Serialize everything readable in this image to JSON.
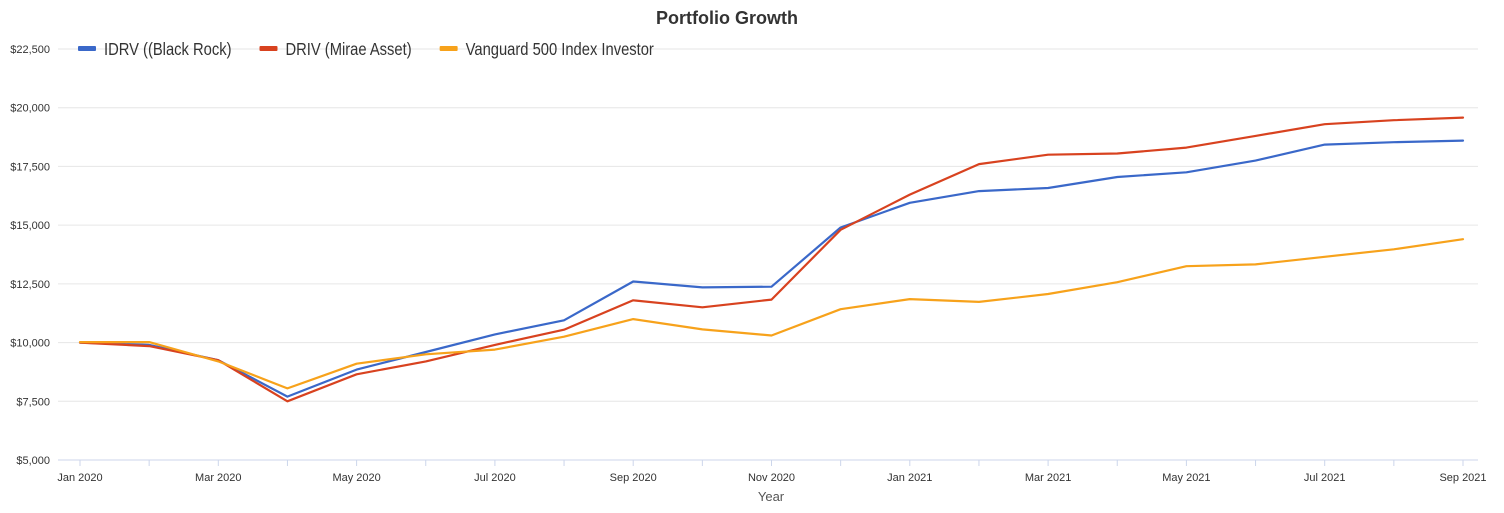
{
  "chart_data": {
    "type": "line",
    "title": "Portfolio Growth",
    "xlabel": "Year",
    "ylabel": "",
    "ylim": [
      5000,
      22500
    ],
    "y_ticks": [
      5000,
      7500,
      10000,
      12500,
      15000,
      17500,
      20000,
      22500
    ],
    "y_tick_labels": [
      "$5,000",
      "$7,500",
      "$10,000",
      "$12,500",
      "$15,000",
      "$17,500",
      "$20,000",
      "$22,500"
    ],
    "x": [
      "2020-01",
      "2020-02",
      "2020-03",
      "2020-04",
      "2020-05",
      "2020-06",
      "2020-07",
      "2020-08",
      "2020-09",
      "2020-10",
      "2020-11",
      "2020-12",
      "2021-01",
      "2021-02",
      "2021-03",
      "2021-04",
      "2021-05",
      "2021-06",
      "2021-07",
      "2021-08",
      "2021-09"
    ],
    "x_tick_labels": [
      "Jan 2020",
      "",
      "Mar 2020",
      "",
      "May 2020",
      "",
      "Jul 2020",
      "",
      "Sep 2020",
      "",
      "Nov 2020",
      "",
      "Jan 2021",
      "",
      "Mar 2021",
      "",
      "May 2021",
      "",
      "Jul 2021",
      "",
      "Sep 2021"
    ],
    "legend_position": "top-left",
    "grid": true,
    "series": [
      {
        "name": "IDRV ((Black Rock)",
        "color": "#3a68c9",
        "values": [
          10000,
          9900,
          9250,
          7700,
          8850,
          9600,
          10350,
          10950,
          12600,
          12350,
          12380,
          14900,
          15950,
          16450,
          16580,
          17050,
          17250,
          17750,
          18430,
          18530,
          18600
        ]
      },
      {
        "name": "DRIV (Mirae Asset)",
        "color": "#d8421f",
        "values": [
          10000,
          9850,
          9250,
          7500,
          8650,
          9200,
          9900,
          10550,
          11800,
          11500,
          11830,
          14800,
          16300,
          17600,
          18000,
          18050,
          18300,
          18800,
          19300,
          19470,
          19580
        ]
      },
      {
        "name": "Vanguard 500 Index Investor",
        "color": "#f7a21b",
        "values": [
          10020,
          10020,
          9200,
          8050,
          9100,
          9500,
          9700,
          10250,
          11000,
          10560,
          10300,
          11420,
          11850,
          11730,
          12070,
          12570,
          13250,
          13330,
          13650,
          13970,
          14400
        ]
      }
    ]
  }
}
